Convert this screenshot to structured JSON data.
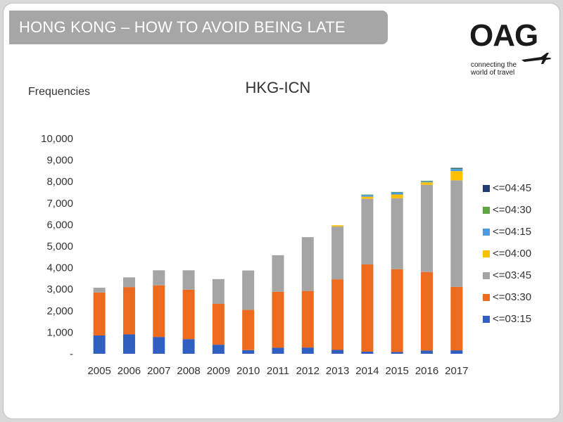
{
  "banner": {
    "title": "HONG KONG – HOW TO AVOID BEING LATE"
  },
  "logo": {
    "word": "OAG",
    "tagline": "connecting the world of travel"
  },
  "chart_data": {
    "type": "bar",
    "stacked": true,
    "title": "HKG-ICN",
    "ylabel": "Frequencies",
    "xlabel": "",
    "ylim": [
      0,
      10000
    ],
    "yticks": [
      0,
      1000,
      2000,
      3000,
      4000,
      5000,
      6000,
      7000,
      8000,
      9000,
      10000
    ],
    "ytick_labels": [
      "-",
      "1,000",
      "2,000",
      "3,000",
      "4,000",
      "5,000",
      "6,000",
      "7,000",
      "8,000",
      "9,000",
      "10,000"
    ],
    "categories": [
      "2005",
      "2006",
      "2007",
      "2008",
      "2009",
      "2010",
      "2011",
      "2012",
      "2013",
      "2014",
      "2015",
      "2016",
      "2017"
    ],
    "legend_position": "right",
    "series": [
      {
        "name": "<=03:15",
        "color": "#2e5fc1",
        "values": [
          850,
          900,
          780,
          680,
          420,
          170,
          280,
          290,
          180,
          100,
          80,
          150,
          160
        ]
      },
      {
        "name": "<=03:30",
        "color": "#ed6b1e",
        "values": [
          2000,
          2200,
          2400,
          2300,
          1900,
          1870,
          2600,
          2630,
          3280,
          4050,
          3850,
          3650,
          2950
        ]
      },
      {
        "name": "<=03:45",
        "color": "#a5a5a5",
        "values": [
          220,
          450,
          700,
          900,
          1150,
          1830,
          1700,
          2500,
          2450,
          3050,
          3300,
          4050,
          4950
        ]
      },
      {
        "name": "<=04:00",
        "color": "#ffc000",
        "values": [
          0,
          0,
          0,
          0,
          0,
          0,
          0,
          0,
          60,
          100,
          170,
          120,
          430
        ]
      },
      {
        "name": "<=04:15",
        "color": "#4a9be0",
        "values": [
          0,
          0,
          0,
          0,
          0,
          0,
          0,
          0,
          0,
          80,
          100,
          50,
          100
        ]
      },
      {
        "name": "<=04:30",
        "color": "#5fa53d",
        "values": [
          0,
          0,
          0,
          0,
          0,
          0,
          0,
          0,
          0,
          20,
          20,
          20,
          20
        ]
      },
      {
        "name": "<=04:45",
        "color": "#1f3b73",
        "values": [
          0,
          0,
          0,
          0,
          0,
          0,
          0,
          0,
          0,
          0,
          0,
          0,
          30
        ]
      }
    ]
  }
}
